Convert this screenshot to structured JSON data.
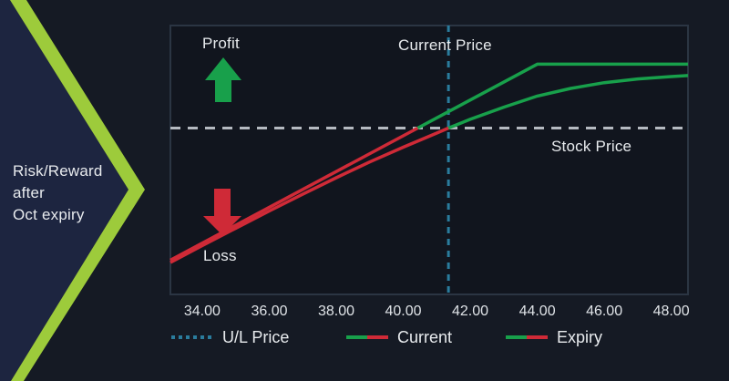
{
  "left_panel": {
    "caption_lines": [
      "Risk/Reward",
      "after",
      "Oct expiry"
    ]
  },
  "labels": {
    "profit": "Profit",
    "loss": "Loss",
    "current_price": "Current Price",
    "stock_price": "Stock Price"
  },
  "legend": [
    {
      "label": "U/L Price",
      "swatch": "teal-dotted"
    },
    {
      "label": "Current",
      "swatch": "green-red"
    },
    {
      "label": "Expiry",
      "swatch": "green-red"
    }
  ],
  "colors": {
    "page_bg": "#151a24",
    "plot_bg": "#11151e",
    "plot_border": "#2b3543",
    "panel_navy": "#1d2540",
    "chevron": "#9dcb3b",
    "profit": "#18a04b",
    "loss": "#cf2a37",
    "ul_line": "#2a7c9d",
    "breakeven": "#b5bac1",
    "text": "#e8ebee",
    "axis_text": "#dfe3e7"
  },
  "chart_data": {
    "type": "line",
    "title": "Risk/Reward after Oct expiry",
    "xlabel": "Stock Price",
    "x_ticks": [
      34,
      36,
      38,
      40,
      42,
      44,
      46,
      48
    ],
    "x_tick_decimals": 2,
    "xlim": [
      33.05,
      48.5
    ],
    "ylim": [
      -4.95,
      3.05
    ],
    "grid": false,
    "legend_position": "bottom",
    "current_price": 41.35,
    "breakeven_value": 0,
    "max_profit_value": 1.9,
    "color_rule": "segments below breakeven are loss-red, above are profit-green",
    "series": [
      {
        "name": "Current",
        "style": "smooth-curve",
        "points": [
          [
            33.05,
            -4.0
          ],
          [
            34,
            -3.5
          ],
          [
            35,
            -2.98
          ],
          [
            36,
            -2.47
          ],
          [
            37,
            -1.97
          ],
          [
            38,
            -1.48
          ],
          [
            39,
            -1.01
          ],
          [
            40,
            -0.57
          ],
          [
            41,
            -0.15
          ],
          [
            41.35,
            0.0
          ],
          [
            42,
            0.26
          ],
          [
            43,
            0.62
          ],
          [
            44,
            0.95
          ],
          [
            45,
            1.18
          ],
          [
            46,
            1.35
          ],
          [
            47,
            1.46
          ],
          [
            48,
            1.53
          ],
          [
            48.5,
            1.56
          ]
        ]
      },
      {
        "name": "Expiry",
        "style": "kinked-payoff",
        "points": [
          [
            33.05,
            -3.93
          ],
          [
            44,
            1.9
          ],
          [
            48.5,
            1.9
          ]
        ]
      }
    ]
  }
}
